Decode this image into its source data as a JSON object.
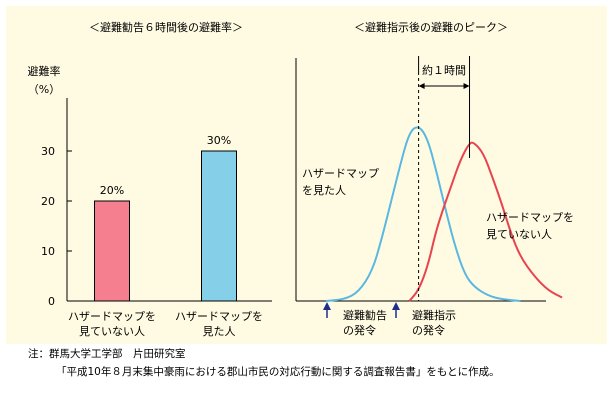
{
  "colors": {
    "background": "#fffbe3",
    "bar_without_map": "#f67f8f",
    "bar_with_map": "#85cfe8",
    "line_with_map": "#5ab8e0",
    "line_without_map": "#e8434f",
    "arrow": "#1c2f8f"
  },
  "chart_data": [
    {
      "type": "bar",
      "title": "＜避難勧告６時間後の避難率＞",
      "ylabel": "避難率",
      "yunit": "（%）",
      "ylim": [
        0,
        40
      ],
      "yticks": [
        "0",
        "10",
        "20",
        "30"
      ],
      "categories": [
        "ハザードマップを見ていない人",
        "ハザードマップを見た人"
      ],
      "category_lines": [
        [
          "ハザードマップを",
          "見ていない人"
        ],
        [
          "ハザードマップを",
          "見た人"
        ]
      ],
      "values": [
        20,
        30
      ],
      "value_labels": [
        "20%",
        "30%"
      ],
      "grid": false
    },
    {
      "type": "line",
      "title": "＜避難指示後の避難のピーク＞",
      "series": [
        {
          "name": "ハザードマップを見た人",
          "label_lines": [
            "ハザードマップ",
            "を見た人"
          ],
          "x": [
            0,
            20,
            35,
            50,
            60,
            72,
            80,
            90,
            100,
            110,
            120,
            130,
            140,
            150,
            160,
            175,
            190,
            210
          ],
          "y": [
            0,
            1,
            5,
            17,
            35,
            60,
            77,
            96,
            100,
            92,
            72,
            50,
            30,
            15,
            8,
            3,
            1,
            0
          ]
        },
        {
          "name": "ハザードマップを見ていない人",
          "label_lines": [
            "ハザードマップを",
            "見ていない人"
          ],
          "x": [
            90,
            100,
            110,
            118,
            125,
            135,
            145,
            155,
            160,
            170,
            180,
            190,
            200,
            210,
            225,
            240,
            255
          ],
          "y": [
            0,
            6,
            20,
            38,
            50,
            65,
            80,
            90,
            90,
            84,
            70,
            55,
            38,
            25,
            14,
            6,
            2
          ]
        }
      ],
      "annotations": {
        "interval": "約１時間",
        "evacuation_advisory": [
          "避難勧告",
          "の発令"
        ],
        "evacuation_order": [
          "避難指示",
          "の発令"
        ]
      }
    }
  ],
  "footnote": {
    "line1": "注：群馬大学工学部　片田研究室",
    "line2": "「平成10年８月末集中豪雨における郡山市民の対応行動に関する調査報告書」をもとに作成。"
  }
}
